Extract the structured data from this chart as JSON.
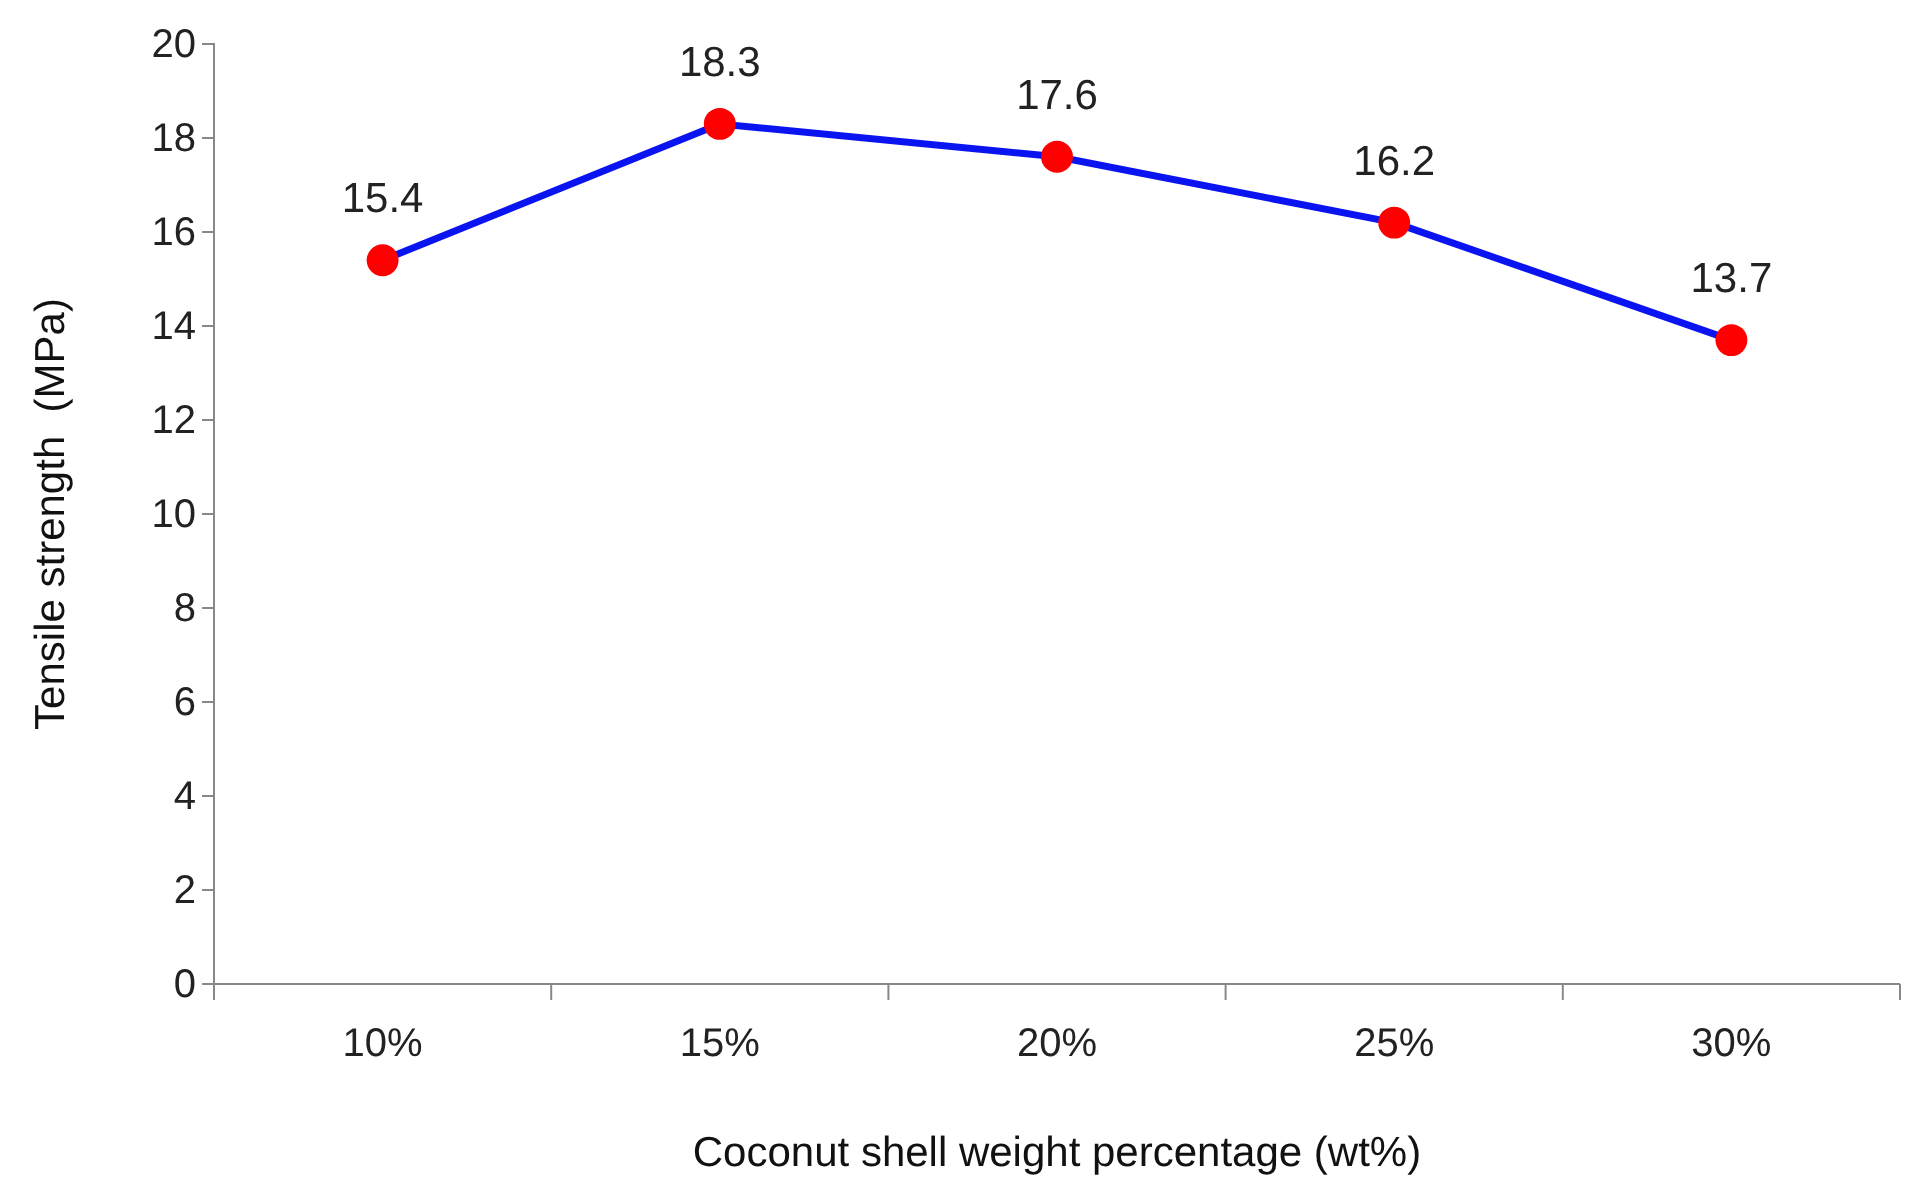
{
  "chart_data": {
    "type": "line",
    "xlabel": "Coconut shell weight percentage (wt%)",
    "ylabel": "Tensile strength  (MPa)",
    "categories": [
      "10%",
      "15%",
      "20%",
      "25%",
      "30%"
    ],
    "series": [
      {
        "color": "#0a14f0",
        "colors": [
          "#ff0000",
          "#ff0000",
          "#ff0000",
          "#ff0000",
          "#ff0000"
        ],
        "values": [
          15.4,
          18.3,
          17.6,
          16.2,
          13.7
        ]
      }
    ],
    "marker": "circle",
    "data_labels": true,
    "ylim": [
      0,
      20
    ],
    "yticks": [
      0,
      2,
      4,
      6,
      8,
      10,
      12,
      14,
      16,
      18,
      20
    ],
    "grid": false
  }
}
